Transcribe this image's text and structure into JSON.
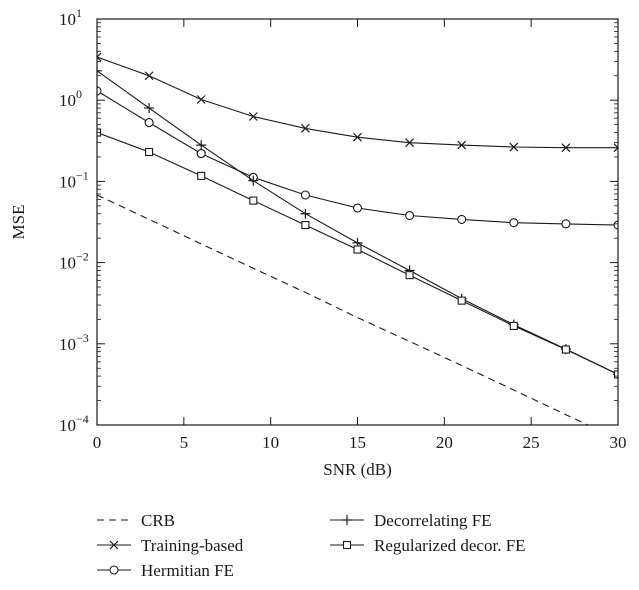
{
  "chart_data": {
    "type": "line",
    "xlabel": "SNR (dB)",
    "ylabel": "MSE",
    "xlim": [
      0,
      30
    ],
    "ylim": [
      0.0001,
      10
    ],
    "yscale": "log",
    "x_ticks": [
      0,
      5,
      10,
      15,
      20,
      25,
      30
    ],
    "y_ticks": [
      {
        "value": 0.0001,
        "base": "10",
        "exp": "−4"
      },
      {
        "value": 0.001,
        "base": "10",
        "exp": "−3"
      },
      {
        "value": 0.01,
        "base": "10",
        "exp": "−2"
      },
      {
        "value": 0.1,
        "base": "10",
        "exp": "−1"
      },
      {
        "value": 1,
        "base": "10",
        "exp": "0"
      },
      {
        "value": 10,
        "base": "10",
        "exp": "1"
      }
    ],
    "grid": false,
    "legend_position": "bottom",
    "series": [
      {
        "name": "CRB",
        "style": "dashed",
        "marker": "none",
        "x": [
          0,
          3,
          6,
          9,
          12,
          15,
          18,
          21,
          24,
          27,
          30
        ],
        "y": [
          0.068,
          0.034,
          0.017,
          0.0085,
          0.0043,
          0.0021,
          0.00107,
          0.00054,
          0.00027,
          0.000134,
          6.7e-05
        ]
      },
      {
        "name": "Training-based",
        "style": "solid",
        "marker": "x",
        "x": [
          0,
          3,
          6,
          9,
          12,
          15,
          18,
          21,
          24,
          27,
          30
        ],
        "y": [
          3.4,
          2.0,
          1.02,
          0.63,
          0.45,
          0.35,
          0.3,
          0.28,
          0.265,
          0.26,
          0.26
        ]
      },
      {
        "name": "Hermitian FE",
        "style": "solid",
        "marker": "circle",
        "x": [
          0,
          3,
          6,
          9,
          12,
          15,
          18,
          21,
          24,
          27,
          30
        ],
        "y": [
          1.3,
          0.53,
          0.22,
          0.112,
          0.068,
          0.047,
          0.038,
          0.034,
          0.031,
          0.03,
          0.029
        ]
      },
      {
        "name": "Decorrelating FE",
        "style": "solid",
        "marker": "plus",
        "x": [
          0,
          3,
          6,
          9,
          12,
          15,
          18,
          21,
          24,
          27,
          30
        ],
        "y": [
          2.3,
          0.8,
          0.28,
          0.102,
          0.04,
          0.0175,
          0.008,
          0.0036,
          0.00172,
          0.00086,
          0.00042
        ]
      },
      {
        "name": "Regularized decor. FE",
        "style": "solid",
        "marker": "square",
        "x": [
          0,
          3,
          6,
          9,
          12,
          15,
          18,
          21,
          24,
          27,
          30
        ],
        "y": [
          0.4,
          0.23,
          0.117,
          0.058,
          0.029,
          0.0145,
          0.007,
          0.0034,
          0.00166,
          0.00085,
          0.00042
        ]
      }
    ]
  }
}
